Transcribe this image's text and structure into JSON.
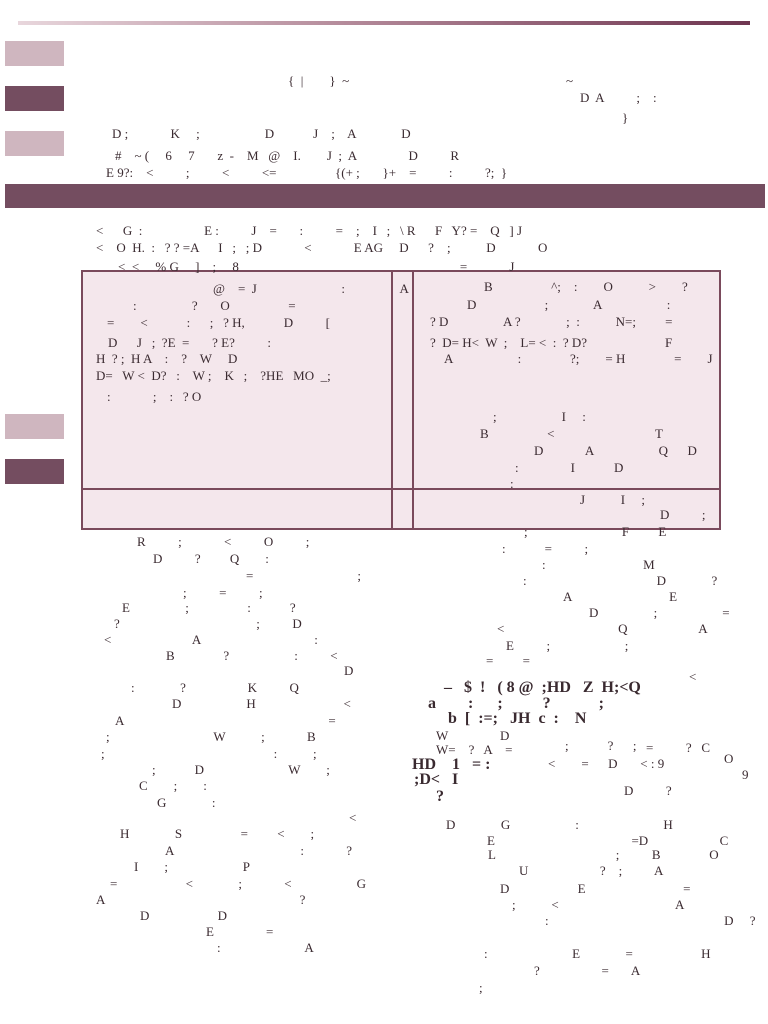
{
  "doc_lines": [
    "{  |        }  ~",
    "~",
    "D  A          ;    :",
    "}",
    "D ;             K     ;                    D            J    ;    A              D",
    "#    ~ (     6     7       z  -    M   @    I.        J  ;  A                D          R",
    "E 9?:    <          ;          <          <=                  {(+ ;       }+    =          :          ?;  }",
    "<      G  :                   E :          J    =       :          =    ;    I   ;   \\ R      F   Y? =    Q   ] J",
    "<    O  H.  :   ? ? =A      I   ;   ; D             <             E AG     D      ?    ;           D             O",
    "<  <     % G     ]    ;     8                                                                    =             J",
    "@    =  J                          :                 A",
    ":                 ?       O                  =",
    "=        <            :      ;   ? H,            D          [",
    "D      J   ;  ?E  =       ? E?          :",
    "H  ? ;  H A    :    ?    W     D",
    "D=   W <  D?   :    W ;    K   ;    ?HE   MO  _;",
    ":             ;    :   ? O",
    "B                  ^;    :        O           >        ?",
    "D                     ;              A                    :",
    "? D                 A ?              ;  :           N=;         =",
    "?  D= H<  W  ;    L= <  :  ? D?                        F",
    "A                    :               ?;        = H               =        J",
    ";                    I     :",
    "B                  <                               T",
    "D             A                    Q      D",
    ":                I            D",
    ":",
    "J           I     ;",
    "D          ;",
    ";                             F         E",
    "R          ;             <          O          ;",
    "D          ?         Q        :",
    "=                                ;",
    ";          =          ;",
    "E                 ;                  :            ?",
    "?                                          ;          D",
    "<                         A                                   :",
    "B               ?                    :          <",
    "D",
    ":              ?                   K          Q",
    "D                    H                           <",
    "A                                                               =",
    ";                                W           ;             B",
    ";                                                    :           ;",
    ";            D                          W        ;",
    "C        ;        :",
    "G              :",
    "<",
    "H              S                  =         <        ;",
    "A                                       :             ?",
    "I        ;                       P",
    "=                     <              ;             <                    G",
    "A                                                            ?",
    "D                     D",
    "E                =",
    ":                          A",
    ":            =          ;",
    ":                              M",
    ":                                        D              ?",
    "A                              E",
    "D                 ;                    =",
    "<                                   Q                      A",
    "E          ;                       ;",
    "=         =",
    "<",
    "–   $  !   ( 8 @  ;HD   Z  H;<Q",
    "a        :      ;          ?            ;",
    "b  [  :=;   JH  c  :    N",
    "W                D",
    "W=    ?   A    =",
    "HD    1   = :",
    ";D<   I",
    "?",
    ";            ?      ;",
    "=          ?   C",
    "<        =      D       < : 9",
    "O",
    "9",
    "D          ?",
    "D              G                    :                          H",
    "E                                          =D                      C",
    "L                                     ;          B               O",
    "U                      ?    ;          A",
    "D                     E                              =",
    ";           <                                    A",
    ":                                                      D     ?",
    ":                          E              =                     H",
    "?                   =       A",
    ";"
  ]
}
